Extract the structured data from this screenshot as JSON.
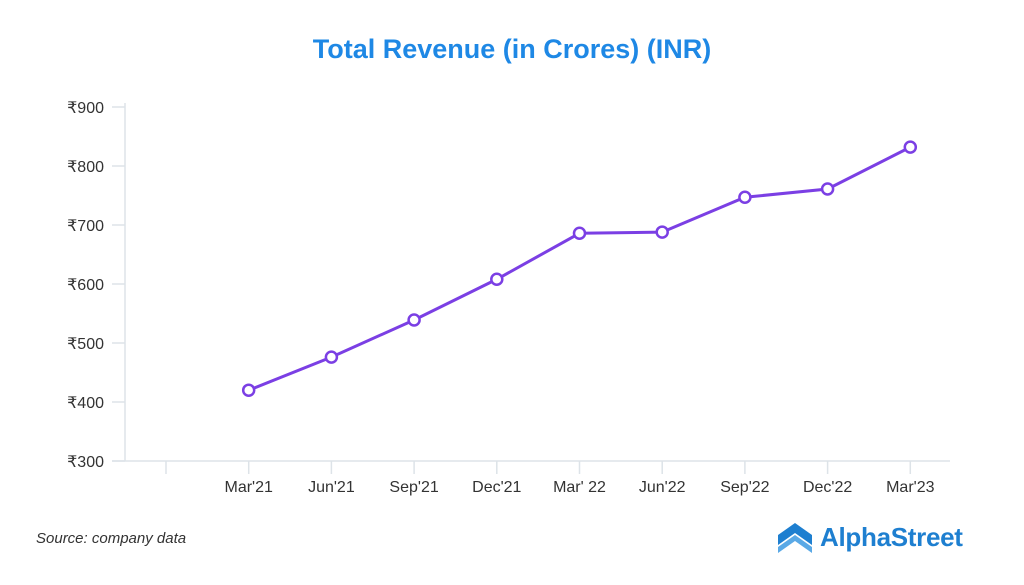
{
  "chart_data": {
    "type": "line",
    "title": "Total Revenue (in Crores) (INR)",
    "xlabel": "",
    "ylabel": "",
    "categories": [
      "",
      "Mar'21",
      "Jun'21",
      "Sep'21",
      "Dec'21",
      "Mar' 22",
      "Jun'22",
      "Sep'22",
      "Dec'22",
      "Mar'23"
    ],
    "series": [
      {
        "name": "Total Revenue",
        "values": [
          null,
          420,
          476,
          539,
          608,
          686,
          688,
          747,
          761,
          832
        ],
        "color": "#7b3fe4"
      }
    ],
    "ylim": [
      300,
      900
    ],
    "yticks": [
      300,
      400,
      500,
      600,
      700,
      800,
      900
    ],
    "ytick_prefix": "₹",
    "grid": false,
    "legend": "none"
  },
  "footer": {
    "source": "Source: company data",
    "brand": "AlphaStreet"
  },
  "colors": {
    "title": "#1e88e5",
    "axis": "#dde3e8",
    "line": "#7b3fe4"
  }
}
